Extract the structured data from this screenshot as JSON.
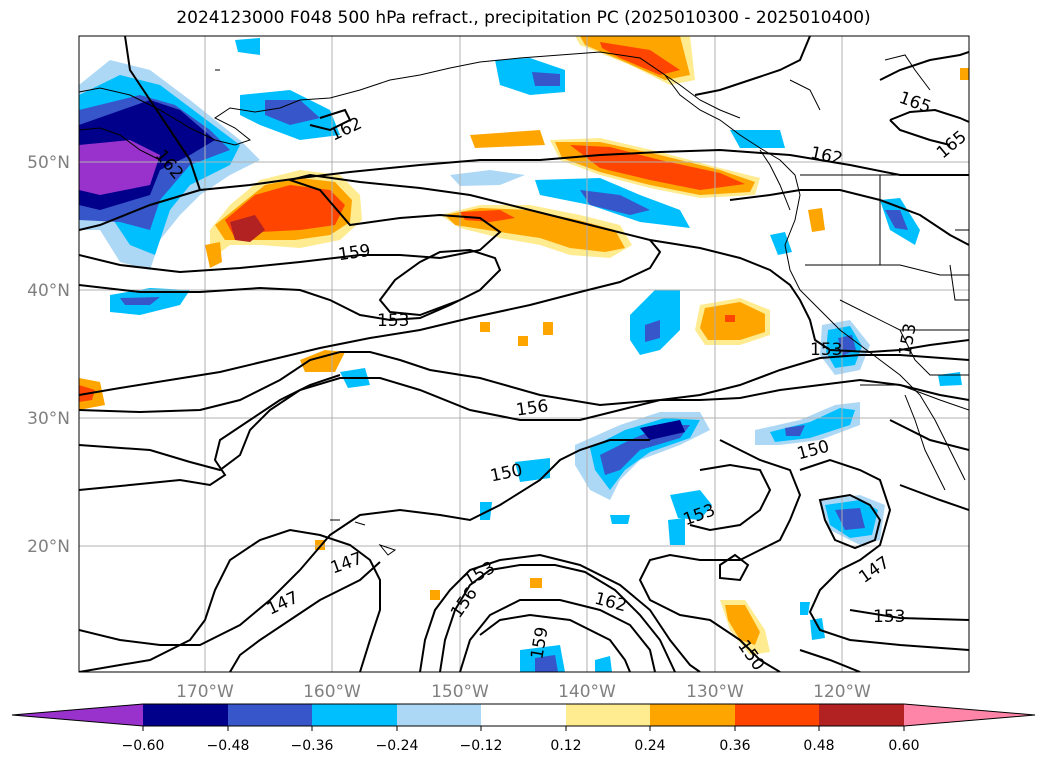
{
  "title": "2024123000 F048 500 hPa refract., precipitation PC (2025010300 - 2025010400)",
  "colors": {
    "neg_066": "#9932cc",
    "neg_054": "#00008b",
    "neg_042": "#3656c9",
    "neg_030": "#00bfff",
    "neg_018": "#add8f5",
    "zero": "#ffffff",
    "pos_018": "#ffeb90",
    "pos_030": "#ffa500",
    "pos_042": "#ff4500",
    "pos_054": "#b22222",
    "pos_066": "#ff85a8"
  },
  "map": {
    "lat_labels": [
      "50°N",
      "40°N",
      "30°N",
      "20°N"
    ],
    "lon_labels": [
      "170°W",
      "160°W",
      "150°W",
      "140°W",
      "130°W",
      "120°W"
    ]
  },
  "contour_labels": [
    "162",
    "162",
    "162",
    "165",
    "165",
    "159",
    "153",
    "153",
    "153",
    "156",
    "150",
    "150",
    "153",
    "147",
    "147",
    "147",
    "153",
    "156",
    "162",
    "159",
    "150",
    "153"
  ],
  "colorbar": {
    "ticks": [
      "−0.60",
      "−0.48",
      "−0.36",
      "−0.24",
      "−0.12",
      "0.12",
      "0.24",
      "0.36",
      "0.48",
      "0.60"
    ]
  }
}
